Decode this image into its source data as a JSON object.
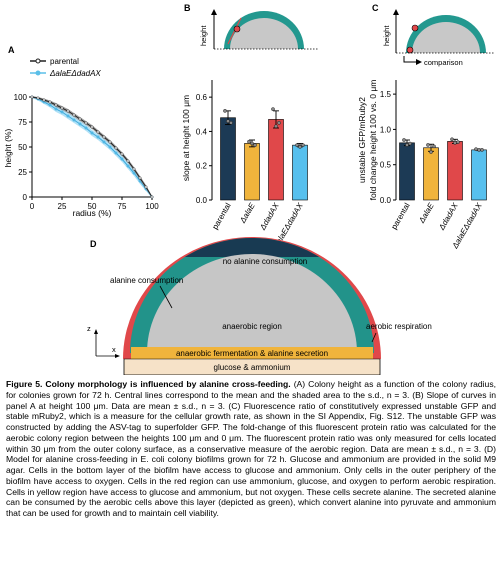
{
  "panels": {
    "A": {
      "letter": "A",
      "legend": [
        "parental",
        "ΔalaEΔdadAX"
      ],
      "xlabel": "radius (%)",
      "ylabel": "height (%)",
      "xticks": [
        "0",
        "25",
        "50",
        "75",
        "100"
      ],
      "yticks": [
        "0",
        "25",
        "50",
        "75",
        "100"
      ]
    },
    "B": {
      "letter": "B",
      "schematic_label": "height",
      "ylabel": "slope at height 100 μm",
      "yticks": [
        "0.0",
        "0.2",
        "0.4",
        "0.6"
      ]
    },
    "C": {
      "letter": "C",
      "schematic_label_y": "height",
      "schematic_label_x": "comparison",
      "ylabel_1": "unstable GFP/mRuby2",
      "ylabel_2": "fold change height 100 vs. 0 μm",
      "yticks": [
        "0.0",
        "0.5",
        "1.0",
        "1.5"
      ]
    },
    "D": {
      "letter": "D",
      "labels": {
        "no_alanine": "no alanine consumption",
        "alanine_consumption": "alanine consumption",
        "anaerobic_region": "anaerobic region",
        "aerobic_respiration": "aerobic respiration",
        "fermentation": "anaerobic fermentation & alanine secretion",
        "substrate": "glucose & ammonium",
        "axis_z": "z",
        "axis_x": "x"
      }
    }
  },
  "bar_categories": [
    "parental",
    "ΔalaE",
    "ΔdadAX",
    "ΔalaEΔdadAX"
  ],
  "chart_data": [
    {
      "type": "line",
      "panel": "A",
      "xlabel": "radius (%)",
      "ylabel": "height (%)",
      "xlim": [
        0,
        100
      ],
      "ylim": [
        0,
        100
      ],
      "series": [
        {
          "name": "parental",
          "x": [
            0,
            5,
            10,
            15,
            20,
            25,
            30,
            35,
            40,
            45,
            50,
            55,
            60,
            65,
            70,
            75,
            80,
            85,
            90,
            95,
            100
          ],
          "y": [
            100,
            99,
            97,
            95,
            92,
            89,
            86,
            82,
            78,
            74,
            70,
            65,
            60,
            55,
            49,
            43,
            36,
            28,
            19,
            10,
            0
          ],
          "band": [
            1,
            1,
            1.5,
            1.5,
            2,
            2,
            2,
            2,
            2,
            2,
            2,
            2,
            2,
            2,
            2,
            2,
            2,
            2,
            2,
            2,
            1
          ]
        },
        {
          "name": "ΔalaEΔdadAX",
          "x": [
            0,
            5,
            10,
            15,
            20,
            25,
            30,
            35,
            40,
            45,
            50,
            55,
            60,
            65,
            70,
            75,
            80,
            85,
            90,
            95,
            100
          ],
          "y": [
            100,
            98,
            95,
            92,
            88,
            85,
            81,
            77,
            73,
            69,
            64,
            60,
            55,
            50,
            44,
            38,
            31,
            24,
            16,
            8,
            0
          ],
          "band": [
            1,
            1.5,
            2,
            2.5,
            3,
            3,
            3,
            3,
            3,
            3,
            3,
            3,
            3,
            3,
            3,
            3,
            3,
            3,
            3,
            2,
            1
          ]
        }
      ]
    },
    {
      "type": "bar",
      "panel": "B",
      "ylabel": "slope at height 100 μm",
      "categories": [
        "parental",
        "ΔalaE",
        "ΔdadAX",
        "ΔalaEΔdadAX"
      ],
      "values": [
        0.48,
        0.33,
        0.47,
        0.32
      ],
      "errors": [
        0.04,
        0.02,
        0.05,
        0.01
      ],
      "points": [
        [
          0.52,
          0.46,
          0.45
        ],
        [
          0.34,
          0.33,
          0.32
        ],
        [
          0.53,
          0.43,
          0.45
        ],
        [
          0.32,
          0.31,
          0.32
        ]
      ],
      "colors": [
        "#1c3a55",
        "#f0b43c",
        "#e0484a",
        "#57c0ee"
      ],
      "ylim": [
        0,
        0.7
      ]
    },
    {
      "type": "bar",
      "panel": "C",
      "ylabel": "unstable GFP/mRuby2 fold change height 100 vs. 0 μm",
      "categories": [
        "parental",
        "ΔalaE",
        "ΔdadAX",
        "ΔalaEΔdadAX"
      ],
      "values": [
        0.81,
        0.74,
        0.83,
        0.71
      ],
      "errors": [
        0.04,
        0.05,
        0.03,
        0.01
      ],
      "points": [
        [
          0.85,
          0.78,
          0.8
        ],
        [
          0.78,
          0.68,
          0.76
        ],
        [
          0.86,
          0.81,
          0.82
        ],
        [
          0.72,
          0.71,
          0.71
        ]
      ],
      "colors": [
        "#1c3a55",
        "#f0b43c",
        "#e0484a",
        "#57c0ee"
      ],
      "ylim": [
        0.0,
        1.7
      ]
    }
  ],
  "caption": {
    "title": "Figure 5. Colony morphology is influenced by alanine cross-feeding.",
    "body": " (A) Colony height as a function of the colony radius, for colonies grown for 72 h. Central lines correspond to the mean and the shaded area to the s.d., n = 3. (B) Slope of curves in panel A at height 100 μm. Data are mean ± s.d., n = 3. (C) Fluorescence ratio of constitutively expressed unstable GFP and stable mRuby2, which is a measure for the cellular growth rate, as shown in the SI Appendix, Fig. S12. The unstable GFP was constructed by adding the ASV-tag to superfolder GFP. The fold-change of this fluorescent protein ratio was calculated for the aerobic colony region between the heights 100 μm and 0 μm. The fluorescent protein ratio was only measured for cells located within 30 μm from the outer colony surface, as a conservative measure of the aerobic region. Data are mean ± s.d., n = 3. (D) Model for alanine cross-feeding in E. coli colony biofilms grown for 72 h. Glucose and ammonium are provided in the solid M9 agar. Cells in the bottom layer of the biofilm have access to glucose and ammonium. Only cells in the outer periphery of the biofilm have access to oxygen. Cells in the red region can use ammonium, glucose, and oxygen to perform aerobic respiration. Cells in yellow region have access to glucose and ammonium, but not oxygen. These cells secrete alanine. The secreted alanine can be consumed by the aerobic cells above this layer (depicted as green), which convert alanine into pyruvate and ammonium that can be used for growth and to maintain cell viability."
  }
}
